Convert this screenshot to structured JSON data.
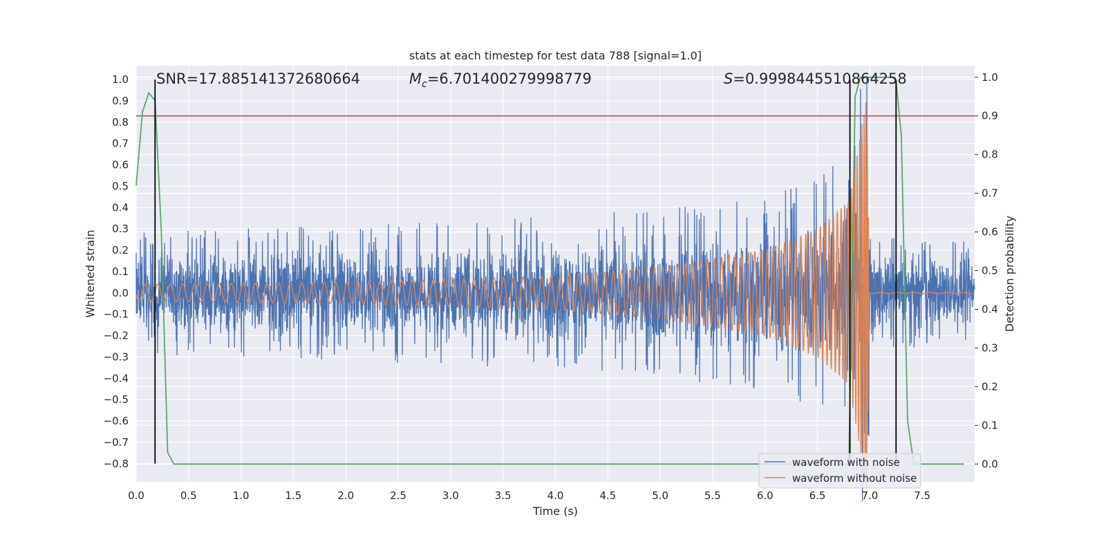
{
  "chart_data": {
    "type": "line",
    "title": "stats at each timestep for test data 788 [signal=1.0]",
    "xlabel": "Time (s)",
    "ylabel_left": "Whitened strain",
    "ylabel_right": "Detection probability",
    "xlim": [
      0.0,
      8.0
    ],
    "ylim_left": [
      -0.885,
      1.065
    ],
    "ylim_right": [
      -0.046,
      1.03
    ],
    "x_ticks": [
      0.0,
      0.5,
      1.0,
      1.5,
      2.0,
      2.5,
      3.0,
      3.5,
      4.0,
      4.5,
      5.0,
      5.5,
      6.0,
      6.5,
      7.0,
      7.5
    ],
    "x_tick_labels": [
      "0.0",
      "0.5",
      "1.0",
      "1.5",
      "2.0",
      "2.5",
      "3.0",
      "3.5",
      "4.0",
      "4.5",
      "5.0",
      "5.5",
      "6.0",
      "6.5",
      "7.0",
      "7.5"
    ],
    "y_left_ticks": [
      1.0,
      0.9,
      0.8,
      0.7,
      0.6,
      0.5,
      0.4,
      0.3,
      0.2,
      0.1,
      0.0,
      -0.1,
      -0.2,
      -0.3,
      -0.4,
      -0.5,
      -0.6,
      -0.7,
      -0.8
    ],
    "y_left_tick_labels": [
      "1.0",
      "0.9",
      "0.8",
      "0.7",
      "0.6",
      "0.5",
      "0.4",
      "0.3",
      "0.2",
      "0.1",
      "0.0",
      "−0.1",
      "−0.2",
      "−0.3",
      "−0.4",
      "−0.5",
      "−0.6",
      "−0.7",
      "−0.8"
    ],
    "y_right_ticks": [
      1.0,
      0.9,
      0.8,
      0.7,
      0.6,
      0.5,
      0.4,
      0.3,
      0.2,
      0.1,
      0.0
    ],
    "y_right_tick_labels": [
      "1.0",
      "0.9",
      "0.8",
      "0.7",
      "0.6",
      "0.5",
      "0.4",
      "0.3",
      "0.2",
      "0.1",
      "0.0"
    ],
    "grid": true,
    "legend_position": "lower-right",
    "annotations": {
      "snr_prefix": "SNR=",
      "snr_value": "17.885141372680664",
      "mc_value": "=6.701400279998779",
      "mc_symbol": "M",
      "mc_subscript": "c",
      "s_symbol": "S",
      "s_value": "=0.9998445510864258"
    },
    "threshold_line": {
      "axis": "right",
      "y": 0.9,
      "color": "#c44e52"
    },
    "vertical_markers_x": [
      0.18,
      6.81,
      7.25
    ],
    "series": [
      {
        "name": "waveform with noise",
        "color": "#4c72b0",
        "axis": "left",
        "kind": "noisy_strain",
        "noise_band_before_merger": [
          [
            0.0,
            0.22
          ],
          [
            3.0,
            0.26
          ],
          [
            5.0,
            0.3
          ],
          [
            6.0,
            0.36
          ],
          [
            6.5,
            0.42
          ],
          [
            6.8,
            0.52
          ],
          [
            6.97,
            0.95
          ]
        ],
        "noise_band_after_merger": 0.2,
        "x_range": [
          0.0,
          8.0
        ]
      },
      {
        "name": "waveform without noise",
        "color": "#dd8452",
        "axis": "left",
        "kind": "chirp",
        "amplitude_envelope": [
          [
            0.0,
            0.04
          ],
          [
            2.0,
            0.05
          ],
          [
            4.0,
            0.08
          ],
          [
            5.0,
            0.12
          ],
          [
            6.0,
            0.2
          ],
          [
            6.5,
            0.3
          ],
          [
            6.8,
            0.43
          ],
          [
            6.97,
            0.92
          ],
          [
            7.0,
            0.0
          ]
        ],
        "merger_time": 6.99
      },
      {
        "name": "",
        "color": "#55a868",
        "axis": "right",
        "kind": "probability",
        "x": [
          0.0,
          0.06,
          0.12,
          0.18,
          0.24,
          0.3,
          0.36,
          0.4,
          6.8,
          6.86,
          6.91,
          6.97,
          7.03,
          7.1,
          7.16,
          7.22,
          7.25,
          7.3,
          7.36,
          7.42,
          7.48,
          7.9
        ],
        "y": [
          0.72,
          0.91,
          0.96,
          0.94,
          0.6,
          0.03,
          0.0,
          0.0,
          0.0,
          0.95,
          1.0,
          1.0,
          1.0,
          1.0,
          1.0,
          1.0,
          0.99,
          0.85,
          0.11,
          0.0,
          0.0,
          0.0
        ]
      }
    ],
    "legend": [
      {
        "label": "waveform with noise",
        "color": "#4c72b0"
      },
      {
        "label": "waveform without noise",
        "color": "#dd8452"
      }
    ],
    "colors": {
      "background": "#eaeaf2",
      "grid": "#ffffff",
      "marker": "#000000"
    }
  }
}
